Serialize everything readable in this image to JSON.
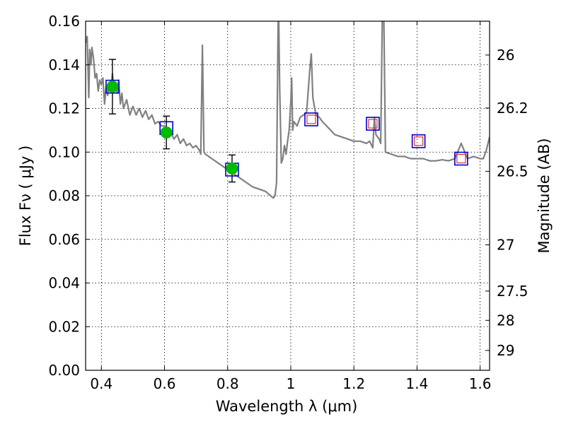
{
  "chart_data": {
    "type": "scatter",
    "xlabel": "Wavelength  λ (μm)",
    "ylabel": "Flux  Fν  ( μJy )",
    "ylabel_right": "Magnitude (AB)",
    "xlim": [
      0.35,
      1.63
    ],
    "ylim": [
      0.0,
      0.16
    ],
    "grid": true,
    "x_ticks": [
      0.4,
      0.6,
      0.8,
      1.0,
      1.2,
      1.4,
      1.6
    ],
    "x_tick_labels": [
      "0.4",
      "0.6",
      "0.8",
      "1",
      "1.2",
      "1.4",
      "1.6"
    ],
    "y_ticks": [
      0.0,
      0.02,
      0.04,
      0.06,
      0.08,
      0.1,
      0.12,
      0.14,
      0.16
    ],
    "y_tick_labels": [
      "0.00",
      "0.02",
      "0.04",
      "0.06",
      "0.08",
      "0.10",
      "0.12",
      "0.14",
      "0.16"
    ],
    "right_ticks": [
      {
        "label": "26",
        "flux": 0.1445
      },
      {
        "label": "26.2",
        "flux": 0.1202
      },
      {
        "label": "26.5",
        "flux": 0.0912
      },
      {
        "label": "27",
        "flux": 0.0575
      },
      {
        "label": "27.5",
        "flux": 0.0363
      },
      {
        "label": "28",
        "flux": 0.0229
      },
      {
        "label": "29",
        "flux": 0.0091
      }
    ],
    "colors": {
      "model": "#808080",
      "observed": "#00bb00",
      "model_box": "#0000cc",
      "prediction_box": "#dd3333",
      "errorbar": "#000000"
    },
    "series": [
      {
        "kind": "line",
        "x": [
          0.35,
          0.355,
          0.36,
          0.363,
          0.367,
          0.37,
          0.375,
          0.38,
          0.385,
          0.39,
          0.395,
          0.4,
          0.405,
          0.41,
          0.415,
          0.42,
          0.425,
          0.43,
          0.435,
          0.44,
          0.445,
          0.45,
          0.455,
          0.46,
          0.465,
          0.47,
          0.48,
          0.49,
          0.5,
          0.51,
          0.52,
          0.53,
          0.54,
          0.55,
          0.56,
          0.57,
          0.58,
          0.59,
          0.6,
          0.61,
          0.62,
          0.63,
          0.64,
          0.65,
          0.66,
          0.67,
          0.68,
          0.69,
          0.7,
          0.71,
          0.715,
          0.72,
          0.725,
          0.73,
          0.74,
          0.75,
          0.76,
          0.78,
          0.8,
          0.82,
          0.84,
          0.86,
          0.88,
          0.9,
          0.92,
          0.94,
          0.945,
          0.95,
          0.955,
          0.958,
          0.96,
          0.962,
          0.965,
          0.97,
          0.975,
          0.98,
          0.985,
          0.99,
          0.995,
          1.0,
          1.003,
          1.006,
          1.01,
          1.02,
          1.03,
          1.04,
          1.05,
          1.06,
          1.065,
          1.07,
          1.08,
          1.09,
          1.1,
          1.12,
          1.14,
          1.16,
          1.18,
          1.2,
          1.22,
          1.24,
          1.25,
          1.26,
          1.265,
          1.27,
          1.28,
          1.285,
          1.29,
          1.295,
          1.3,
          1.32,
          1.34,
          1.36,
          1.38,
          1.4,
          1.42,
          1.44,
          1.46,
          1.48,
          1.5,
          1.52,
          1.54,
          1.56,
          1.58,
          1.6,
          1.61,
          1.62,
          1.63
        ],
        "y": [
          0.15,
          0.153,
          0.125,
          0.147,
          0.14,
          0.148,
          0.143,
          0.134,
          0.136,
          0.128,
          0.133,
          0.131,
          0.134,
          0.122,
          0.13,
          0.126,
          0.132,
          0.128,
          0.136,
          0.128,
          0.131,
          0.127,
          0.133,
          0.122,
          0.127,
          0.12,
          0.124,
          0.117,
          0.121,
          0.117,
          0.12,
          0.116,
          0.119,
          0.115,
          0.117,
          0.113,
          0.114,
          0.112,
          0.112,
          0.11,
          0.109,
          0.106,
          0.108,
          0.104,
          0.106,
          0.103,
          0.104,
          0.102,
          0.103,
          0.101,
          0.099,
          0.149,
          0.1,
          0.099,
          0.098,
          0.097,
          0.096,
          0.094,
          0.092,
          0.09,
          0.088,
          0.086,
          0.084,
          0.083,
          0.082,
          0.0795,
          0.079,
          0.08,
          0.086,
          0.13,
          0.16,
          0.16,
          0.13,
          0.095,
          0.097,
          0.103,
          0.099,
          0.105,
          0.11,
          0.123,
          0.134,
          0.11,
          0.114,
          0.112,
          0.116,
          0.117,
          0.118,
          0.137,
          0.145,
          0.125,
          0.117,
          0.116,
          0.114,
          0.111,
          0.108,
          0.107,
          0.106,
          0.105,
          0.105,
          0.104,
          0.105,
          0.102,
          0.116,
          0.108,
          0.106,
          0.104,
          0.16,
          0.16,
          0.1,
          0.099,
          0.098,
          0.098,
          0.097,
          0.097,
          0.097,
          0.096,
          0.096,
          0.0965,
          0.096,
          0.097,
          0.104,
          0.097,
          0.098,
          0.097,
          0.097,
          0.101,
          0.107
        ]
      },
      {
        "kind": "observed",
        "x": [
          0.435,
          0.606,
          0.814
        ],
        "y": [
          0.13,
          0.109,
          0.0925
        ],
        "err": [
          0.0125,
          0.0075,
          0.0062
        ]
      },
      {
        "kind": "model_box",
        "x": [
          0.435,
          0.606,
          0.814,
          1.065,
          1.26,
          1.405,
          1.54
        ],
        "y": [
          0.13,
          0.111,
          0.092,
          0.115,
          0.113,
          0.105,
          0.097
        ]
      },
      {
        "kind": "prediction_box",
        "x": [
          1.065,
          1.26,
          1.405,
          1.54
        ],
        "y": [
          0.115,
          0.113,
          0.105,
          0.097
        ]
      }
    ]
  }
}
